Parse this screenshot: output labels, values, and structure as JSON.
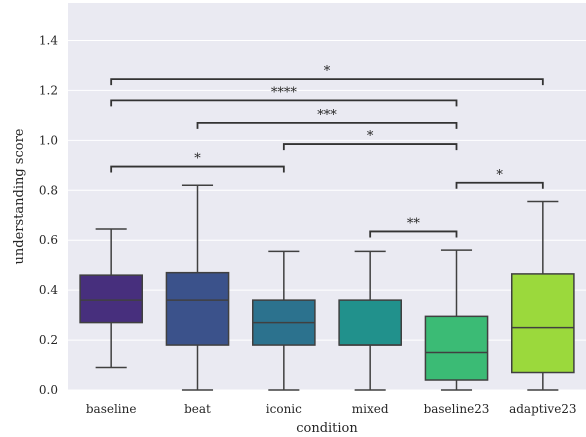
{
  "chart_data": {
    "type": "box",
    "xlabel": "condition",
    "ylabel": "understanding score",
    "ylim": [
      0,
      1.55
    ],
    "yticks": [
      "0.0",
      "0.2",
      "0.4",
      "0.6",
      "0.8",
      "1.0",
      "1.2",
      "1.4"
    ],
    "grid": true,
    "categories": [
      "baseline",
      "beat",
      "iconic",
      "mixed",
      "baseline23",
      "adaptive23"
    ],
    "boxes": [
      {
        "category": "baseline",
        "whisker_low": 0.09,
        "q1": 0.27,
        "median": 0.36,
        "q3": 0.46,
        "whisker_high": 0.645,
        "color": "#472f7d"
      },
      {
        "category": "beat",
        "whisker_low": 0.0,
        "q1": 0.18,
        "median": 0.36,
        "q3": 0.47,
        "whisker_high": 0.82,
        "color": "#3b528b"
      },
      {
        "category": "iconic",
        "whisker_low": 0.0,
        "q1": 0.18,
        "median": 0.27,
        "q3": 0.36,
        "whisker_high": 0.555,
        "color": "#2c728e"
      },
      {
        "category": "mixed",
        "whisker_low": 0.0,
        "q1": 0.18,
        "median": 0.18,
        "q3": 0.36,
        "whisker_high": 0.555,
        "color": "#21918c"
      },
      {
        "category": "baseline23",
        "whisker_low": 0.0,
        "q1": 0.04,
        "median": 0.15,
        "q3": 0.295,
        "whisker_high": 0.56,
        "color": "#3bbb75"
      },
      {
        "category": "adaptive23",
        "whisker_low": 0.0,
        "q1": 0.07,
        "median": 0.25,
        "q3": 0.465,
        "whisker_high": 0.755,
        "color": "#9bd93c"
      }
    ],
    "significance": [
      {
        "from": "baseline",
        "to": "adaptive23",
        "y": 1.245,
        "label": "*"
      },
      {
        "from": "baseline",
        "to": "baseline23",
        "y": 1.16,
        "label": "****"
      },
      {
        "from": "beat",
        "to": "baseline23",
        "y": 1.07,
        "label": "***"
      },
      {
        "from": "iconic",
        "to": "baseline23",
        "y": 0.985,
        "label": "*"
      },
      {
        "from": "baseline",
        "to": "iconic",
        "y": 0.895,
        "label": "*"
      },
      {
        "from": "baseline23",
        "to": "adaptive23",
        "y": 0.83,
        "label": "*"
      },
      {
        "from": "mixed",
        "to": "baseline23",
        "y": 0.635,
        "label": "**"
      }
    ],
    "colors": {
      "background": "#eaeaf2",
      "grid": "#ffffff",
      "line": "#404040"
    }
  }
}
